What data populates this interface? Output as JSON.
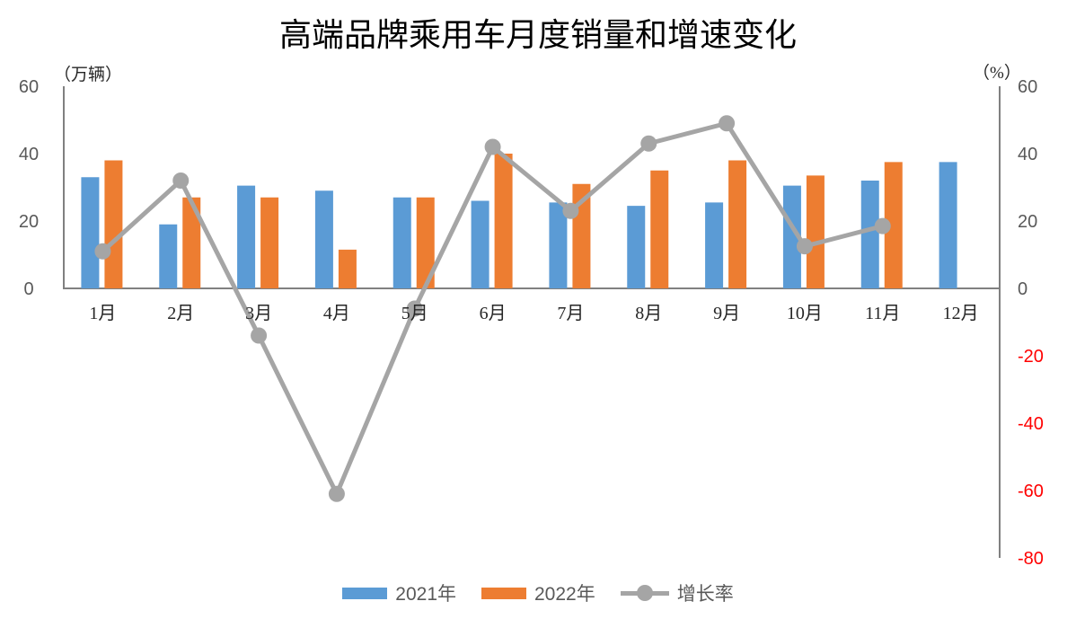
{
  "title": "高端品牌乘用车月度销量和增速变化",
  "left_axis": {
    "unit_label": "（万辆）",
    "ticks": [
      60,
      40,
      20,
      0
    ],
    "min": 0,
    "max": 60
  },
  "right_axis": {
    "unit_label": "（%）",
    "ticks": [
      60,
      40,
      20,
      0,
      -20,
      -40,
      -60,
      -80
    ],
    "min": -80,
    "max": 60
  },
  "legend": [
    {
      "key": "y2021",
      "label": "2021年",
      "type": "bar",
      "color": "#5B9BD5"
    },
    {
      "key": "y2022",
      "label": "2022年",
      "type": "bar",
      "color": "#ED7D31"
    },
    {
      "key": "growth",
      "label": "增长率",
      "type": "line",
      "color": "#A5A5A5"
    }
  ],
  "colors": {
    "bar_2021": "#5B9BD5",
    "bar_2022": "#ED7D31",
    "growth_line": "#A5A5A5",
    "axis_line": "#808080",
    "tick_text": "#595959",
    "negative_tick_text": "#FF0000",
    "category_text": "#262626",
    "title_text": "#000000",
    "legend_text": "#595959"
  },
  "chart_data": {
    "type": "bar+line combo",
    "title": "高端品牌乘用车月度销量和增速变化",
    "categories": [
      "1月",
      "2月",
      "3月",
      "4月",
      "5月",
      "6月",
      "7月",
      "8月",
      "9月",
      "10月",
      "11月",
      "12月"
    ],
    "series": [
      {
        "name": "2021年",
        "key": "y2021",
        "type": "bar",
        "axis": "left",
        "color": "#5B9BD5",
        "values": [
          33,
          19,
          30.5,
          29,
          27,
          26,
          25.5,
          24.5,
          25.5,
          30.5,
          32,
          37.5
        ]
      },
      {
        "name": "2022年",
        "key": "y2022",
        "type": "bar",
        "axis": "left",
        "color": "#ED7D31",
        "values": [
          38,
          27,
          27,
          11.5,
          27,
          40,
          31,
          35,
          38,
          33.5,
          37.5,
          null
        ]
      },
      {
        "name": "增长率",
        "key": "growth",
        "type": "line",
        "axis": "right",
        "color": "#A5A5A5",
        "values": [
          11,
          32,
          -14,
          -61,
          -6,
          42,
          23,
          43,
          49,
          12.5,
          18.5,
          null
        ]
      }
    ],
    "left_ylabel": "（万辆）",
    "right_ylabel": "（%）",
    "left_ylim": [
      0,
      60
    ],
    "right_ylim": [
      -80,
      60
    ],
    "left_tick_step": 20,
    "right_tick_step": 20,
    "grid": false,
    "legend_position": "bottom",
    "negative_right_ticks_red": true
  }
}
